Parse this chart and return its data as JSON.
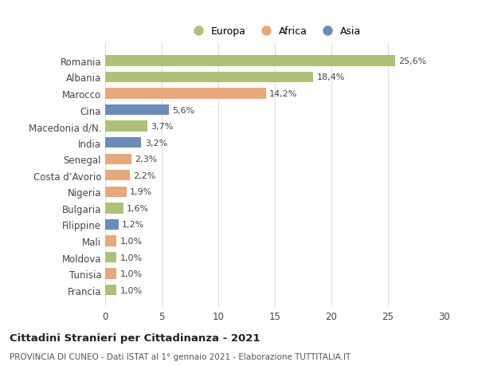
{
  "categories": [
    "Francia",
    "Tunisia",
    "Moldova",
    "Mali",
    "Filippine",
    "Bulgaria",
    "Nigeria",
    "Costa d’Avorio",
    "Senegal",
    "India",
    "Macedonia d/N.",
    "Cina",
    "Marocco",
    "Albania",
    "Romania"
  ],
  "values": [
    1.0,
    1.0,
    1.0,
    1.0,
    1.2,
    1.6,
    1.9,
    2.2,
    2.3,
    3.2,
    3.7,
    5.6,
    14.2,
    18.4,
    25.6
  ],
  "labels": [
    "1,0%",
    "1,0%",
    "1,0%",
    "1,0%",
    "1,2%",
    "1,6%",
    "1,9%",
    "2,2%",
    "2,3%",
    "3,2%",
    "3,7%",
    "5,6%",
    "14,2%",
    "18,4%",
    "25,6%"
  ],
  "continent": [
    "Europa",
    "Africa",
    "Europa",
    "Africa",
    "Asia",
    "Europa",
    "Africa",
    "Africa",
    "Africa",
    "Asia",
    "Europa",
    "Asia",
    "Africa",
    "Europa",
    "Europa"
  ],
  "colors": {
    "Europa": "#adc178",
    "Africa": "#e8a87c",
    "Asia": "#6b8cba"
  },
  "title": "Cittadini Stranieri per Cittadinanza - 2021",
  "subtitle": "PROVINCIA DI CUNEO - Dati ISTAT al 1° gennaio 2021 - Elaborazione TUTTITALIA.IT",
  "xlim": [
    0,
    30
  ],
  "xticks": [
    0,
    5,
    10,
    15,
    20,
    25,
    30
  ],
  "background_color": "#ffffff",
  "grid_color": "#dddddd",
  "bar_height": 0.65
}
